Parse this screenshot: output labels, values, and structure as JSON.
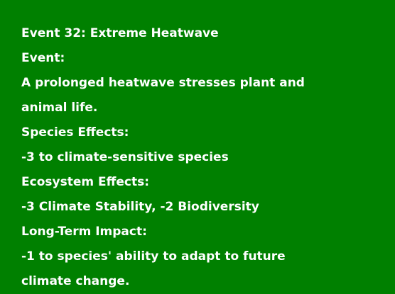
{
  "event": {
    "title": "Event 32: Extreme Heatwave",
    "event_heading": "Event:",
    "event_description": "A prolonged heatwave stresses plant and animal life.",
    "species_heading": "Species Effects:",
    "species_effects": "-3 to climate-sensitive species",
    "ecosystem_heading": "Ecosystem Effects:",
    "ecosystem_effects": "-3 Climate Stability, -2 Biodiversity",
    "longterm_heading": "Long-Term Impact:",
    "longterm_effects": "-1 to species' ability to adapt to future climate change."
  },
  "colors": {
    "background": "#008000",
    "text": "#ffffff"
  }
}
